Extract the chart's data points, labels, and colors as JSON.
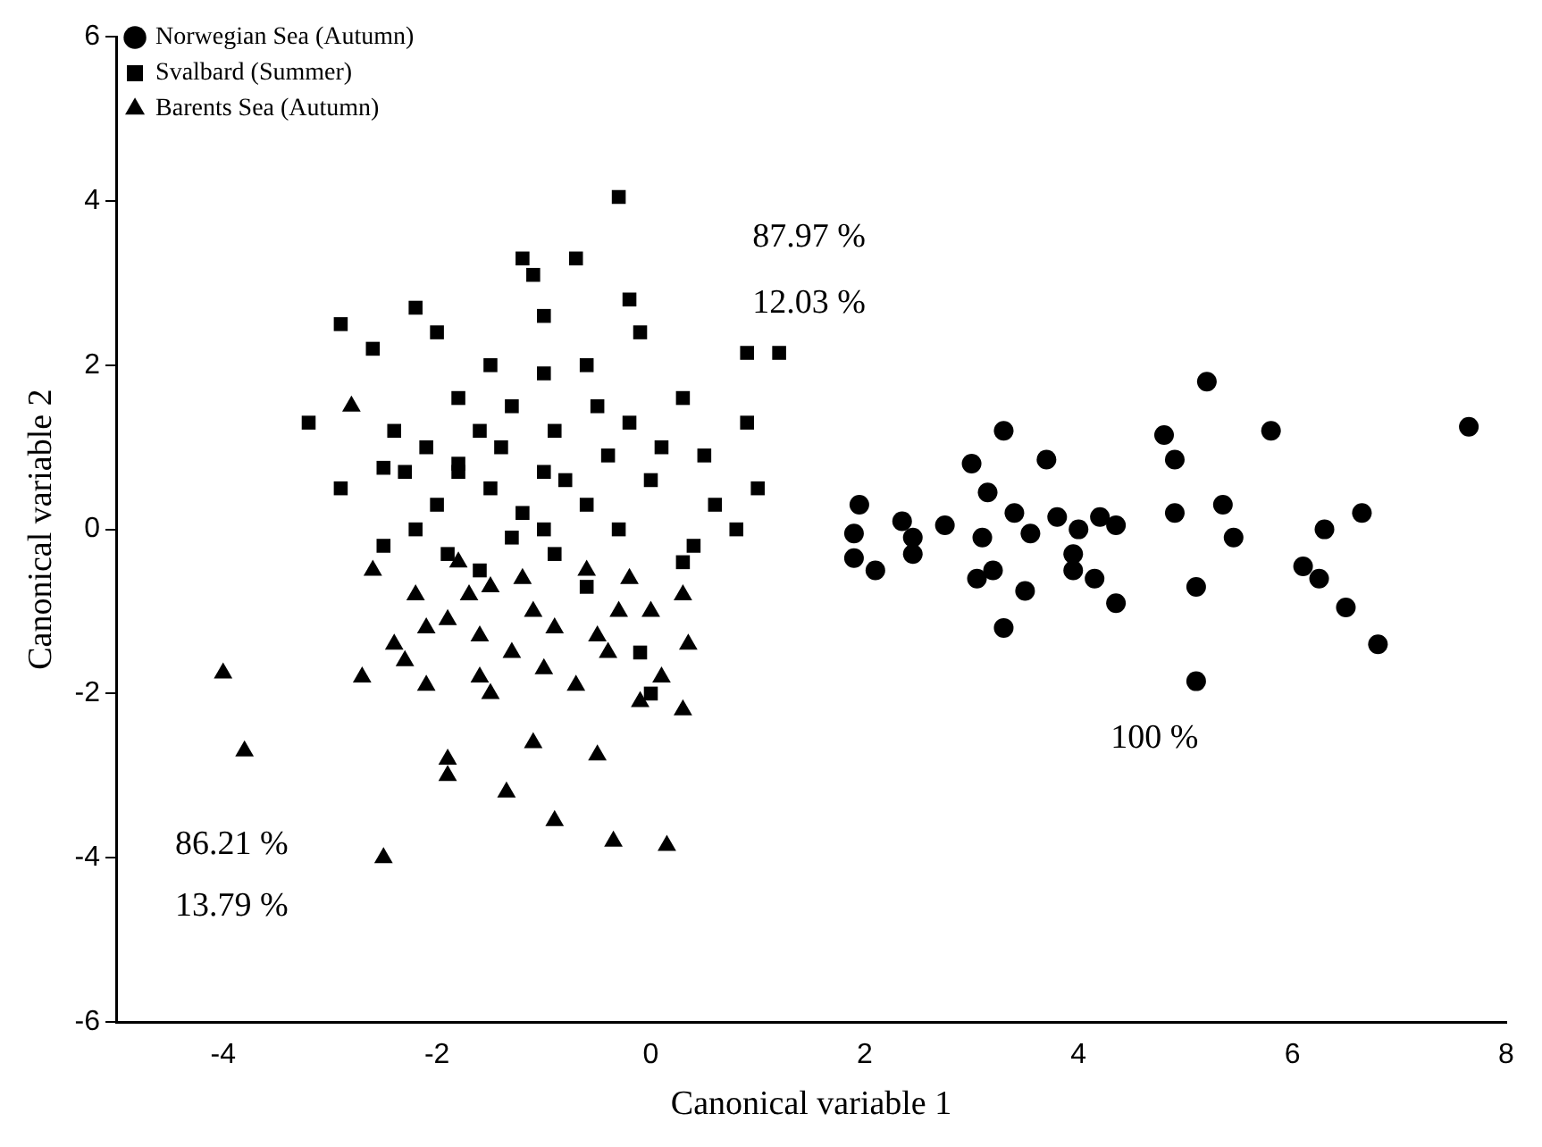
{
  "chart_data": {
    "type": "scatter",
    "xlabel": "Canonical variable 1",
    "ylabel": "Canonical variable 2",
    "xlim": [
      -5,
      8
    ],
    "ylim": [
      -6,
      6
    ],
    "xticks": [
      -4,
      -2,
      0,
      2,
      4,
      6,
      8
    ],
    "yticks": [
      -6,
      -4,
      -2,
      0,
      2,
      4,
      6
    ],
    "grid": false,
    "legend": "top left",
    "annotations": [
      "87.97 %",
      "12.03 %",
      "100 %",
      "86.21 %",
      "13.79 %"
    ],
    "series": [
      {
        "name": "Norwegian Sea (Autumn)",
        "color": "#000000",
        "marker": "circle",
        "x": [
          1.9,
          1.95,
          1.9,
          2.1,
          2.35,
          2.45,
          2.45,
          2.75,
          3.0,
          3.05,
          3.1,
          3.15,
          3.2,
          3.3,
          3.3,
          3.4,
          3.5,
          3.55,
          3.7,
          3.8,
          3.95,
          3.95,
          4.0,
          4.15,
          4.2,
          4.35,
          4.35,
          4.8,
          4.9,
          4.9,
          5.1,
          5.1,
          5.2,
          5.35,
          5.45,
          5.8,
          6.1,
          6.25,
          6.3,
          6.5,
          6.65,
          6.8,
          7.65
        ],
        "values": [
          -0.05,
          0.3,
          -0.35,
          -0.5,
          0.1,
          -0.3,
          -0.1,
          0.05,
          0.8,
          -0.6,
          -0.1,
          0.45,
          -0.5,
          1.2,
          -1.2,
          0.2,
          -0.75,
          -0.05,
          0.85,
          0.15,
          -0.3,
          -0.5,
          0.0,
          -0.6,
          0.15,
          -0.9,
          0.05,
          1.15,
          0.85,
          0.2,
          -0.7,
          -1.85,
          1.8,
          0.3,
          -0.1,
          1.2,
          -0.45,
          -0.6,
          0.0,
          -0.95,
          0.2,
          -1.4,
          1.25
        ]
      },
      {
        "name": "Svalbard (Summer)",
        "color": "#000000",
        "marker": "square",
        "x": [
          -3.2,
          -2.9,
          -2.9,
          -2.6,
          -2.2,
          -2.0,
          -2.4,
          -2.5,
          -2.3,
          -2.1,
          -2.0,
          -1.8,
          -1.8,
          -1.6,
          -1.5,
          -1.4,
          -1.3,
          -1.2,
          -1.1,
          -1.0,
          -1.2,
          -1.0,
          -0.9,
          -0.8,
          -0.7,
          -0.6,
          -0.5,
          -0.4,
          -0.3,
          -0.2,
          -0.1,
          -0.2,
          0.0,
          0.1,
          0.3,
          0.5,
          0.6,
          0.9,
          0.9,
          1.2,
          0.8,
          0.4,
          0.3,
          -0.1,
          0.0,
          -1.6,
          -1.3,
          -2.2,
          -1.9,
          -0.6,
          -1.0,
          -0.6,
          -1.5,
          -0.3,
          -0.9,
          1.0,
          -1.8,
          -2.5,
          -1.0
        ],
        "values": [
          1.3,
          2.5,
          0.5,
          2.2,
          2.7,
          2.4,
          1.2,
          0.75,
          0.7,
          1.0,
          0.3,
          1.6,
          0.8,
          1.2,
          2.0,
          1.0,
          1.5,
          3.3,
          3.1,
          2.6,
          0.2,
          1.9,
          1.2,
          0.6,
          3.3,
          2.0,
          1.5,
          0.9,
          4.05,
          2.8,
          2.4,
          1.3,
          0.6,
          1.0,
          1.6,
          0.9,
          0.3,
          1.3,
          2.15,
          2.15,
          0.0,
          -0.2,
          -0.4,
          -1.5,
          -2.0,
          -0.5,
          -0.1,
          0.0,
          -0.3,
          0.3,
          0.0,
          -0.7,
          0.5,
          0.0,
          -0.3,
          0.5,
          0.7,
          -0.2,
          0.7
        ]
      },
      {
        "name": "Barents Sea (Autumn)",
        "color": "#000000",
        "marker": "triangle",
        "x": [
          -2.8,
          -4.0,
          -3.8,
          -2.5,
          -2.6,
          -2.7,
          -2.4,
          -2.3,
          -2.1,
          -2.1,
          -1.9,
          -1.9,
          -1.6,
          -1.5,
          -1.35,
          -1.1,
          -0.9,
          -0.5,
          -0.35,
          0.15,
          -1.3,
          -1.0,
          -0.7,
          -0.4,
          -0.1,
          0.3,
          0.35,
          0.3,
          -0.3,
          -0.6,
          -1.5,
          -1.8,
          -1.2,
          -1.9,
          -1.6,
          -0.9,
          0.0,
          -0.2,
          -2.2,
          -1.7,
          -1.1,
          -0.5,
          0.1
        ],
        "values": [
          1.5,
          -1.75,
          -2.7,
          -4.0,
          -0.5,
          -1.8,
          -1.4,
          -1.6,
          -1.9,
          -1.2,
          -2.8,
          -3.0,
          -1.8,
          -2.0,
          -3.2,
          -2.6,
          -3.55,
          -2.75,
          -3.8,
          -3.85,
          -1.5,
          -1.7,
          -1.9,
          -1.5,
          -2.1,
          -2.2,
          -1.4,
          -0.8,
          -1.0,
          -0.5,
          -0.7,
          -0.4,
          -0.6,
          -1.1,
          -1.3,
          -1.2,
          -1.0,
          -0.6,
          -0.8,
          -0.8,
          -1.0,
          -1.3,
          -1.8
        ]
      }
    ]
  }
}
